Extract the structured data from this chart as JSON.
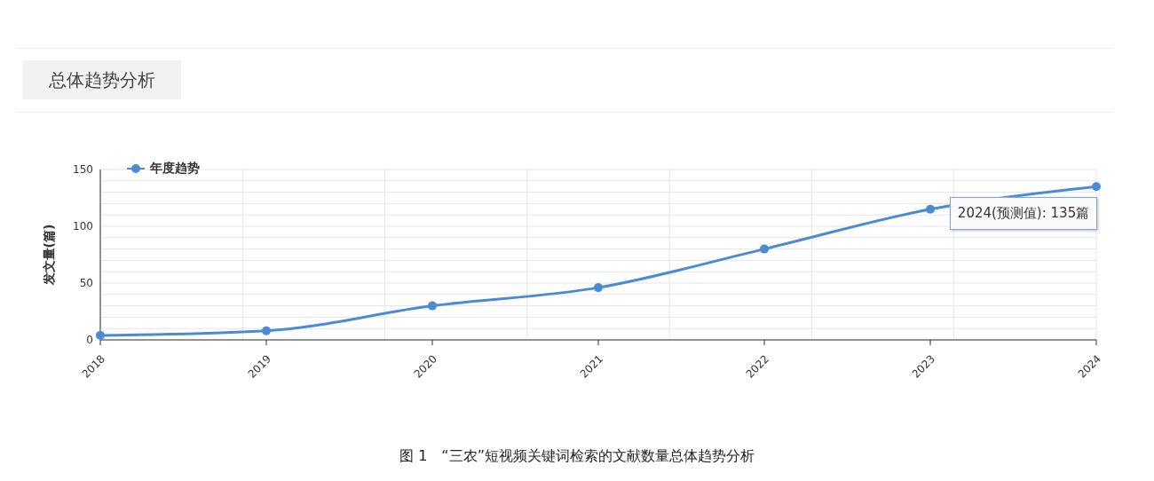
{
  "chart_data": {
    "type": "line",
    "title": "总体趋势分析",
    "ylabel": "发文量(篇)",
    "categories": [
      "2018",
      "2019",
      "2020",
      "2021",
      "2022",
      "2023",
      "2024"
    ],
    "series": [
      {
        "name": "年度趋势",
        "color": "#4a8bd4",
        "values": [
          4,
          8,
          30,
          46,
          80,
          115,
          135
        ]
      }
    ],
    "ylim": [
      0,
      150
    ],
    "yticks": [
      0,
      {
        "value": 10,
        "label": null
      },
      {
        "value": 20,
        "label": null
      },
      {
        "value": 30,
        "label": null
      },
      {
        "value": 40,
        "label": null
      },
      50,
      {
        "value": 60,
        "label": null
      },
      {
        "value": 70,
        "label": null
      },
      {
        "value": 80,
        "label": null
      },
      {
        "value": 90,
        "label": null
      },
      100,
      {
        "value": 110,
        "label": null
      },
      {
        "value": 120,
        "label": null
      },
      {
        "value": 130,
        "label": null
      },
      {
        "value": 140,
        "label": null
      },
      150
    ],
    "grid": true,
    "legend": "top left",
    "marker": "circle",
    "line_style": "solid",
    "annotations": [
      {
        "text": "2024(预测值): 135篇",
        "x": "2024",
        "y": 135
      },
      "图 1　“三农”短视频关键词检索的文献数量总体趋势分析"
    ]
  }
}
